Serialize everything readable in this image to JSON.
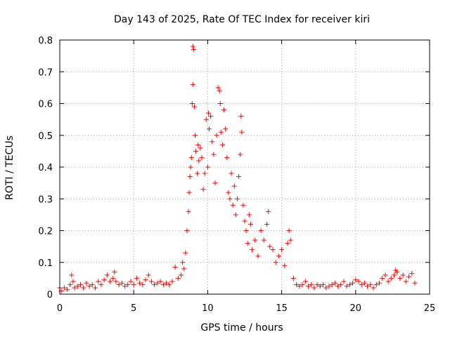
{
  "chart_data": {
    "type": "scatter",
    "title": "Day 143 of 2025, Rate Of TEC Index for receiver kiri",
    "xlabel": "GPS time / hours",
    "ylabel": "ROTI / TECUs",
    "xlim": [
      0,
      25
    ],
    "ylim": [
      0,
      0.8
    ],
    "x_ticks": [
      0,
      5,
      10,
      15,
      20,
      25
    ],
    "x_tick_labels": [
      "0",
      "5",
      "10",
      "15",
      "20",
      "25"
    ],
    "y_ticks": [
      0,
      0.1,
      0.2,
      0.3,
      0.4,
      0.5,
      0.6,
      0.7,
      0.8
    ],
    "y_tick_labels": [
      "0",
      "0.1",
      "0.2",
      "0.3",
      "0.4",
      "0.5",
      "0.6",
      "0.7",
      "0.8"
    ],
    "grid": true,
    "marker": "plus",
    "color": "#ff0000",
    "series": [
      {
        "points": [
          [
            0.0,
            0.02
          ],
          [
            0.1,
            0.01
          ],
          [
            0.3,
            0.02
          ],
          [
            0.5,
            0.015
          ],
          [
            0.7,
            0.03
          ],
          [
            0.8,
            0.06
          ],
          [
            0.9,
            0.04
          ],
          [
            1.0,
            0.02
          ],
          [
            1.2,
            0.025
          ],
          [
            1.4,
            0.03
          ],
          [
            1.6,
            0.02
          ],
          [
            1.8,
            0.035
          ],
          [
            2.0,
            0.025
          ],
          [
            2.2,
            0.03
          ],
          [
            2.4,
            0.02
          ],
          [
            2.6,
            0.04
          ],
          [
            2.8,
            0.03
          ],
          [
            3.0,
            0.045
          ],
          [
            3.2,
            0.06
          ],
          [
            3.4,
            0.04
          ],
          [
            3.6,
            0.05
          ],
          [
            3.7,
            0.07
          ],
          [
            3.8,
            0.04
          ],
          [
            4.0,
            0.03
          ],
          [
            4.2,
            0.035
          ],
          [
            4.4,
            0.025
          ],
          [
            4.6,
            0.03
          ],
          [
            4.8,
            0.04
          ],
          [
            5.0,
            0.03
          ],
          [
            5.2,
            0.05
          ],
          [
            5.4,
            0.035
          ],
          [
            5.6,
            0.03
          ],
          [
            5.8,
            0.045
          ],
          [
            6.0,
            0.06
          ],
          [
            6.2,
            0.04
          ],
          [
            6.4,
            0.03
          ],
          [
            6.6,
            0.035
          ],
          [
            6.8,
            0.04
          ],
          [
            7.0,
            0.03
          ],
          [
            7.2,
            0.035
          ],
          [
            7.4,
            0.03
          ],
          [
            7.6,
            0.04
          ],
          [
            7.8,
            0.085
          ],
          [
            8.0,
            0.05
          ],
          [
            8.2,
            0.06
          ],
          [
            8.3,
            0.1
          ],
          [
            8.4,
            0.08
          ],
          [
            8.5,
            0.13
          ],
          [
            8.6,
            0.2
          ],
          [
            8.7,
            0.26
          ],
          [
            8.75,
            0.32
          ],
          [
            8.8,
            0.37
          ],
          [
            8.85,
            0.4
          ],
          [
            8.9,
            0.43
          ],
          [
            8.95,
            0.6
          ],
          [
            9.0,
            0.66
          ],
          [
            9.0,
            0.78
          ],
          [
            9.05,
            0.77
          ],
          [
            9.1,
            0.59
          ],
          [
            9.15,
            0.5
          ],
          [
            9.2,
            0.45
          ],
          [
            9.3,
            0.38
          ],
          [
            9.35,
            0.47
          ],
          [
            9.4,
            0.42
          ],
          [
            9.5,
            0.46
          ],
          [
            9.6,
            0.43
          ],
          [
            9.7,
            0.33
          ],
          [
            9.8,
            0.38
          ],
          [
            9.9,
            0.55
          ],
          [
            10.0,
            0.4
          ],
          [
            10.05,
            0.57
          ],
          [
            10.1,
            0.52
          ],
          [
            10.2,
            0.56
          ],
          [
            10.3,
            0.48
          ],
          [
            10.4,
            0.44
          ],
          [
            10.5,
            0.35
          ],
          [
            10.6,
            0.5
          ],
          [
            10.7,
            0.65
          ],
          [
            10.8,
            0.64
          ],
          [
            10.85,
            0.6
          ],
          [
            10.9,
            0.51
          ],
          [
            11.0,
            0.47
          ],
          [
            11.1,
            0.58
          ],
          [
            11.2,
            0.52
          ],
          [
            11.3,
            0.43
          ],
          [
            11.4,
            0.32
          ],
          [
            11.5,
            0.3
          ],
          [
            11.6,
            0.38
          ],
          [
            11.7,
            0.28
          ],
          [
            11.8,
            0.34
          ],
          [
            11.9,
            0.25
          ],
          [
            12.0,
            0.3
          ],
          [
            12.1,
            0.37
          ],
          [
            12.2,
            0.44
          ],
          [
            12.25,
            0.56
          ],
          [
            12.3,
            0.51
          ],
          [
            12.4,
            0.28
          ],
          [
            12.5,
            0.23
          ],
          [
            12.6,
            0.2
          ],
          [
            12.7,
            0.16
          ],
          [
            12.8,
            0.25
          ],
          [
            12.9,
            0.22
          ],
          [
            13.0,
            0.14
          ],
          [
            13.2,
            0.17
          ],
          [
            13.4,
            0.12
          ],
          [
            13.6,
            0.2
          ],
          [
            13.8,
            0.17
          ],
          [
            14.0,
            0.22
          ],
          [
            14.1,
            0.26
          ],
          [
            14.2,
            0.15
          ],
          [
            14.4,
            0.14
          ],
          [
            14.6,
            0.1
          ],
          [
            14.8,
            0.12
          ],
          [
            15.0,
            0.14
          ],
          [
            15.2,
            0.09
          ],
          [
            15.4,
            0.16
          ],
          [
            15.5,
            0.2
          ],
          [
            15.6,
            0.17
          ],
          [
            15.8,
            0.05
          ],
          [
            16.0,
            0.03
          ],
          [
            16.2,
            0.025
          ],
          [
            16.4,
            0.03
          ],
          [
            16.6,
            0.04
          ],
          [
            16.8,
            0.025
          ],
          [
            17.0,
            0.03
          ],
          [
            17.2,
            0.02
          ],
          [
            17.4,
            0.03
          ],
          [
            17.6,
            0.025
          ],
          [
            17.8,
            0.03
          ],
          [
            18.0,
            0.02
          ],
          [
            18.2,
            0.025
          ],
          [
            18.4,
            0.03
          ],
          [
            18.6,
            0.035
          ],
          [
            18.8,
            0.025
          ],
          [
            19.0,
            0.03
          ],
          [
            19.2,
            0.04
          ],
          [
            19.4,
            0.025
          ],
          [
            19.6,
            0.03
          ],
          [
            19.8,
            0.035
          ],
          [
            20.0,
            0.045
          ],
          [
            20.2,
            0.04
          ],
          [
            20.4,
            0.03
          ],
          [
            20.6,
            0.035
          ],
          [
            20.8,
            0.025
          ],
          [
            21.0,
            0.03
          ],
          [
            21.2,
            0.02
          ],
          [
            21.4,
            0.03
          ],
          [
            21.6,
            0.035
          ],
          [
            21.8,
            0.05
          ],
          [
            22.0,
            0.06
          ],
          [
            22.2,
            0.04
          ],
          [
            22.4,
            0.05
          ],
          [
            22.6,
            0.06
          ],
          [
            22.7,
            0.075
          ],
          [
            22.8,
            0.07
          ],
          [
            23.0,
            0.05
          ],
          [
            23.2,
            0.06
          ],
          [
            23.4,
            0.04
          ],
          [
            23.6,
            0.055
          ],
          [
            23.8,
            0.065
          ],
          [
            24.0,
            0.035
          ]
        ]
      }
    ]
  }
}
